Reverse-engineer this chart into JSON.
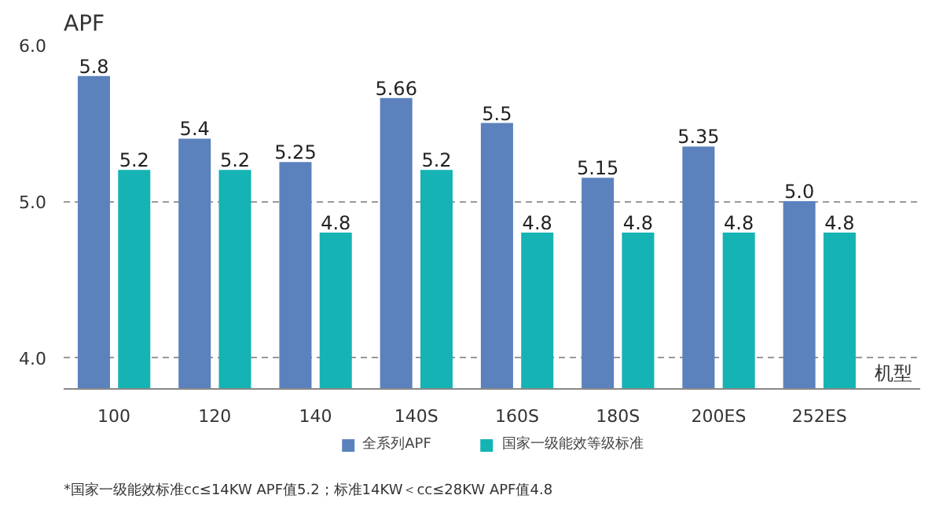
{
  "chart_data": {
    "type": "bar",
    "ylabel": "APF",
    "xlabel": "机型",
    "categories": [
      "100",
      "120",
      "140",
      "140S",
      "160S",
      "180S",
      "200ES",
      "252ES"
    ],
    "series": [
      {
        "name": "全系列APF",
        "color": "#5b82bd",
        "values": [
          5.8,
          5.4,
          5.25,
          5.66,
          5.5,
          5.15,
          5.35,
          5.0
        ],
        "value_labels": [
          "5.8",
          "5.4",
          "5.25",
          "5.66",
          "5.5",
          "5.15",
          "5.35",
          "5.0"
        ]
      },
      {
        "name": "国家一级能效等级标准",
        "color": "#16b3b4",
        "values": [
          5.2,
          5.2,
          4.8,
          5.2,
          4.8,
          4.8,
          4.8,
          4.8
        ],
        "value_labels": [
          "5.2",
          "5.2",
          "4.8",
          "5.2",
          "4.8",
          "4.8",
          "4.8",
          "4.8"
        ]
      }
    ],
    "ylim": [
      3.8,
      6.0
    ],
    "yticks": [
      {
        "value": 4,
        "label": "4.0"
      },
      {
        "value": 5,
        "label": "5.0"
      },
      {
        "value": 6,
        "label": "6.0"
      }
    ],
    "grid": "y",
    "legend": "bottom",
    "annotations": [
      "*国家一级能效标准cc≤14KW   APF值5.2；标准14KW＜cc≤28KW   APF值4.8"
    ]
  }
}
